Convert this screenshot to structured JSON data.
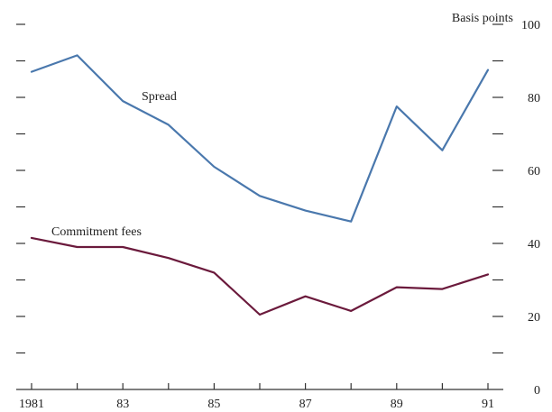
{
  "chart_data": {
    "type": "line",
    "unit_label": "Basis points",
    "x": [
      1981,
      1982,
      1983,
      1984,
      1985,
      1986,
      1987,
      1988,
      1989,
      1990,
      1991
    ],
    "x_tick_labels": [
      {
        "value": 1981,
        "label": "1981"
      },
      {
        "value": 1983,
        "label": "83"
      },
      {
        "value": 1985,
        "label": "85"
      },
      {
        "value": 1987,
        "label": "87"
      },
      {
        "value": 1989,
        "label": "89"
      },
      {
        "value": 1991,
        "label": "91"
      }
    ],
    "y_tick_labels": [
      {
        "value": 0,
        "label": "0"
      },
      {
        "value": 20,
        "label": "20"
      },
      {
        "value": 40,
        "label": "40"
      },
      {
        "value": 60,
        "label": "60"
      },
      {
        "value": 80,
        "label": "80"
      },
      {
        "value": 100,
        "label": "100"
      }
    ],
    "xlim": [
      1981,
      1991
    ],
    "ylim": [
      0,
      100
    ],
    "grid": false,
    "series": [
      {
        "name": "Spread",
        "color": "#4a78ad",
        "values": [
          87,
          91.5,
          79,
          72.5,
          61,
          53,
          49,
          46,
          77.5,
          65.5,
          87.5
        ]
      },
      {
        "name": "Commitment fees",
        "color": "#6b1a3c",
        "values": [
          41.5,
          39,
          39,
          36,
          32,
          20.5,
          25.5,
          21.5,
          28,
          27.5,
          31.5
        ]
      }
    ]
  }
}
